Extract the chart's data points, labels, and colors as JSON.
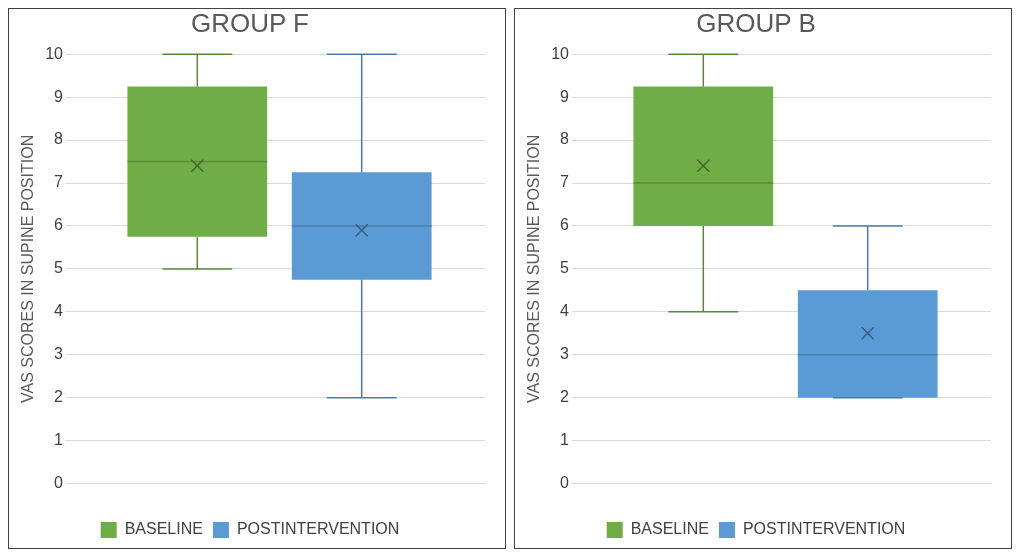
{
  "chart_data": [
    {
      "type": "box",
      "title": "GROUP F",
      "ylabel": "VAS SCORES IN SUPINE POSITION",
      "categories": [
        null
      ],
      "ylim": [
        0,
        10
      ],
      "yticks": [
        0,
        1,
        2,
        3,
        4,
        5,
        6,
        7,
        8,
        9,
        10
      ],
      "grid": "y",
      "legend": "bottom",
      "marker": "cross",
      "series": [
        {
          "name": "BASELINE",
          "color": "#70ad47",
          "boxes": [
            {
              "low": 5,
              "q1": 5.75,
              "median": 7.5,
              "q3": 9.25,
              "high": 10,
              "mean": 7.4
            }
          ]
        },
        {
          "name": "POSTINTERVENTION",
          "color": "#5b9bd5",
          "boxes": [
            {
              "low": 2,
              "q1": 4.75,
              "median": 6,
              "q3": 7.25,
              "high": 10,
              "mean": 5.9
            }
          ]
        }
      ]
    },
    {
      "type": "box",
      "title": "GROUP B",
      "ylabel": "VAS SCORES IN SUPINE POSITION",
      "categories": [
        null
      ],
      "ylim": [
        0,
        10
      ],
      "yticks": [
        0,
        1,
        2,
        3,
        4,
        5,
        6,
        7,
        8,
        9,
        10
      ],
      "grid": "y",
      "legend": "bottom",
      "marker": "cross",
      "series": [
        {
          "name": "BASELINE",
          "color": "#70ad47",
          "boxes": [
            {
              "low": 4,
              "q1": 6,
              "median": 7,
              "q3": 9.25,
              "high": 10,
              "mean": 7.4
            }
          ]
        },
        {
          "name": "POSTINTERVENTION",
          "color": "#5b9bd5",
          "boxes": [
            {
              "low": 2,
              "q1": 2,
              "median": 3,
              "q3": 4.5,
              "high": 6,
              "mean": 3.5
            }
          ]
        }
      ]
    }
  ]
}
